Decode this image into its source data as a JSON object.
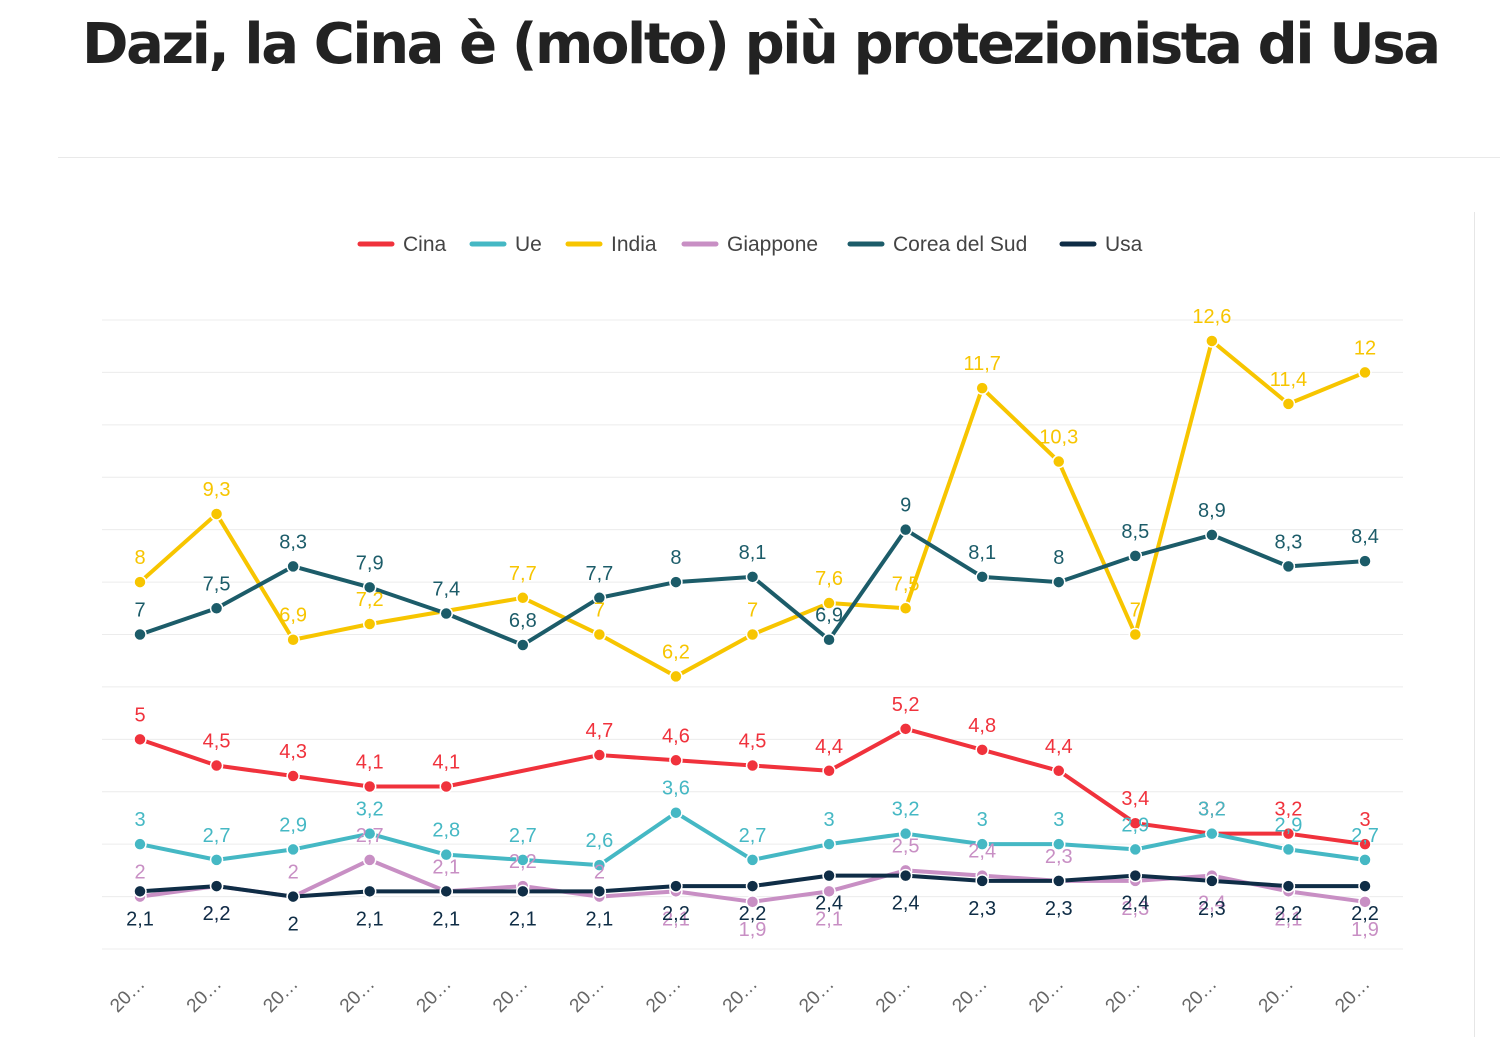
{
  "title": "Dazi, la Cina è (molto) più protezionista di Usa",
  "chart_data": {
    "type": "line",
    "title": "Dazi, la Cina è (molto) più protezionista di Usa",
    "xlabel": "",
    "ylabel": "",
    "categories": [
      "20…",
      "20…",
      "20…",
      "20…",
      "20…",
      "20…",
      "20…",
      "20…",
      "20…",
      "20…",
      "20…",
      "20…",
      "20…",
      "20…",
      "20…",
      "20…",
      "20…"
    ],
    "ylim": [
      1,
      13
    ],
    "grid": true,
    "legend": "top-center",
    "series": [
      {
        "name": "Cina",
        "color": "#f0323c",
        "values": [
          5,
          4.5,
          4.3,
          4.1,
          4.1,
          null,
          4.7,
          4.6,
          4.5,
          4.4,
          5.2,
          4.8,
          4.4,
          3.4,
          3.2,
          3.2,
          3
        ]
      },
      {
        "name": "Ue",
        "color": "#45b8c4",
        "values": [
          3,
          2.7,
          2.9,
          3.2,
          2.8,
          2.7,
          2.6,
          3.6,
          2.7,
          3,
          3.2,
          3,
          3,
          2.9,
          3.2,
          2.9,
          2.7
        ]
      },
      {
        "name": "India",
        "color": "#f7c500",
        "values": [
          8,
          9.3,
          6.9,
          7.2,
          null,
          7.7,
          7,
          6.2,
          7,
          7.6,
          7.5,
          11.7,
          10.3,
          7,
          12.6,
          11.4,
          12
        ]
      },
      {
        "name": "Giappone",
        "color": "#c88fc4",
        "values": [
          2,
          2.2,
          2,
          2.7,
          2.1,
          2.2,
          2,
          2.1,
          1.9,
          2.1,
          2.5,
          2.4,
          2.3,
          2.3,
          2.4,
          2.1,
          1.9
        ]
      },
      {
        "name": "Corea del Sud",
        "color": "#1c5c69",
        "values": [
          7,
          7.5,
          8.3,
          7.9,
          7.4,
          6.8,
          7.7,
          8,
          8.1,
          6.9,
          9,
          8.1,
          8,
          8.5,
          8.9,
          8.3,
          8.4
        ]
      },
      {
        "name": "Usa",
        "color": "#0f2d46",
        "values": [
          2.1,
          2.2,
          2,
          2.1,
          2.1,
          2.1,
          2.1,
          2.2,
          2.2,
          2.4,
          2.4,
          2.3,
          2.3,
          2.4,
          2.3,
          2.2,
          2.2
        ]
      }
    ],
    "data_labels": [
      {
        "series": 0,
        "values": [
          "5",
          "4,5",
          "4,3",
          "4,1",
          "4,1",
          null,
          "4,7",
          "4,6",
          "4,5",
          "4,4",
          "5,2",
          "4,8",
          "4,4",
          "3,4",
          "3,2",
          "3,2",
          "3"
        ]
      },
      {
        "series": 1,
        "values": [
          "3",
          "2,7",
          "2,9",
          "3,2",
          "2,8",
          "2,7",
          "2,6",
          "3,6",
          "2,7",
          "3",
          "3,2",
          "3",
          "3",
          "2,9",
          "3,2",
          "2,9",
          "2,7"
        ]
      },
      {
        "series": 2,
        "values": [
          "8",
          "9,3",
          "6,9",
          "7,2",
          null,
          "7,7",
          "7",
          "6,2",
          "7",
          "7,6",
          "7,5",
          "11,7",
          "10,3",
          "7",
          "12,6",
          "11,4",
          "12"
        ]
      },
      {
        "series": 3,
        "values": [
          "2",
          "2,2",
          "2",
          "2,7",
          "2,1",
          "2,2",
          "2",
          "2,1",
          "1,9",
          "2,1",
          "2,5",
          "2,4",
          "2,3",
          "2,3",
          "2,4",
          "2,1",
          "1,9"
        ]
      },
      {
        "series": 4,
        "values": [
          "7",
          "7,5",
          "8,3",
          "7,9",
          "7,4",
          "6,8",
          "7,7",
          "8",
          "8,1",
          "6,9",
          "9",
          "8,1",
          "8",
          "8,5",
          "8,9",
          "8,3",
          "8,4"
        ]
      },
      {
        "series": 5,
        "values": [
          "2,1",
          "2,2",
          "2",
          "2,1",
          "2,1",
          "2,1",
          "2,1",
          "2,2",
          "2,2",
          "2,4",
          "2,4",
          "2,3",
          "2,3",
          "2,4",
          "2,3",
          "2,2",
          "2,2"
        ]
      }
    ]
  }
}
